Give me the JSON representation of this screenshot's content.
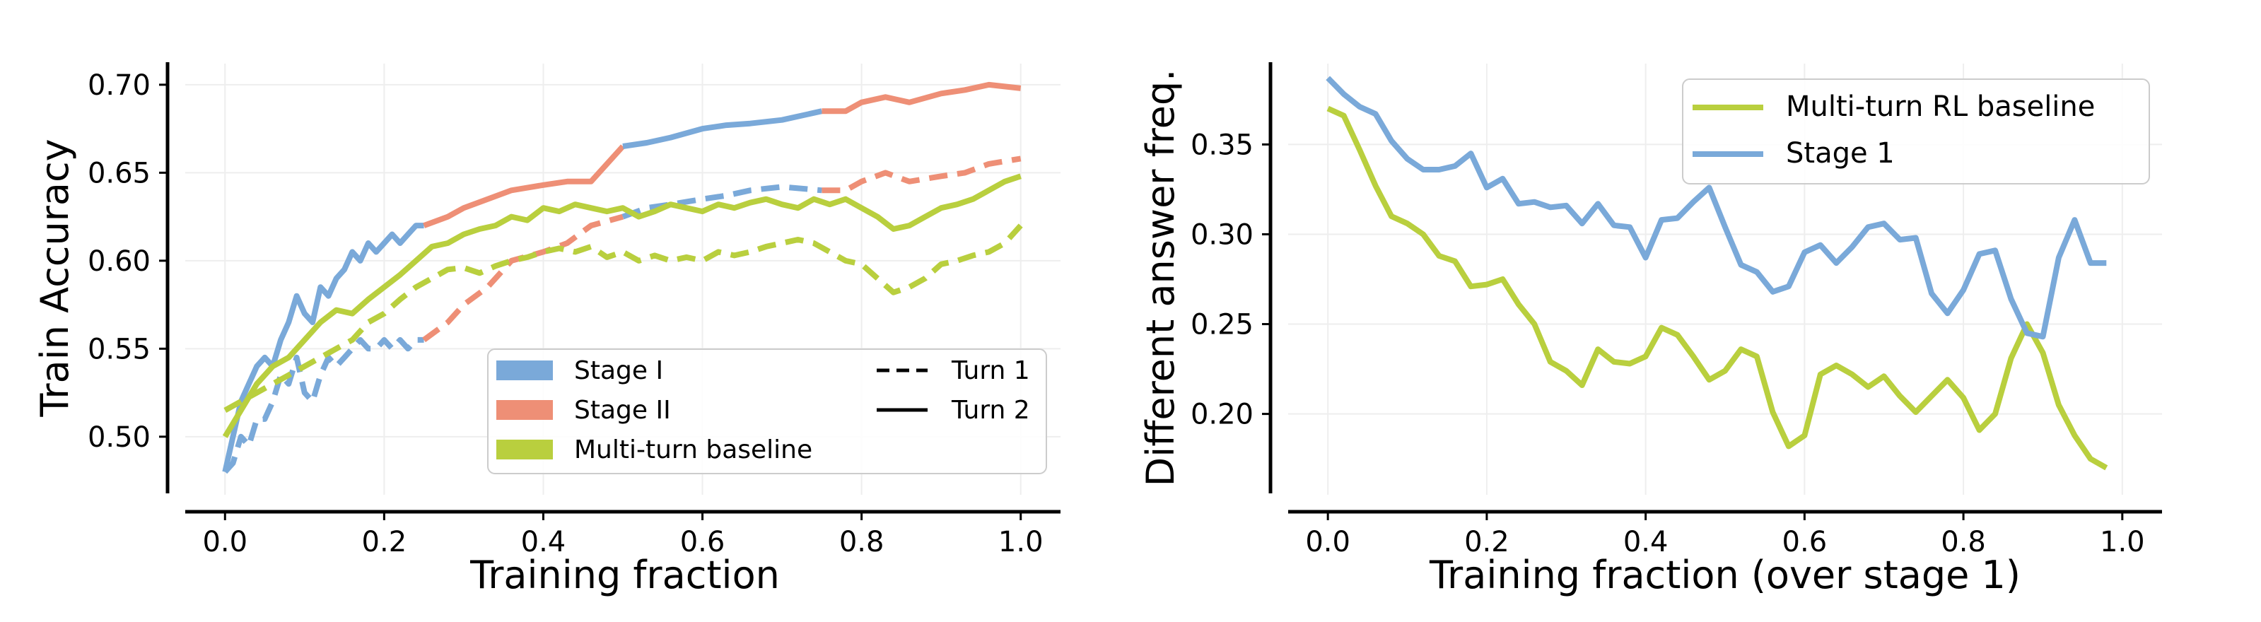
{
  "figure": {
    "colors": {
      "stage1": "#7aa9d9",
      "stage2": "#ee8f76",
      "baseline": "#b9cf3e",
      "axis": "#000000",
      "grid": "#eeeeee"
    }
  },
  "chart_data": [
    {
      "type": "line",
      "xlabel": "Training fraction",
      "ylabel": "Train Accuracy",
      "xlim": [
        -0.05,
        1.05
      ],
      "ylim": [
        0.467,
        0.712
      ],
      "xticks": [
        0.0,
        0.2,
        0.4,
        0.6,
        0.8,
        1.0
      ],
      "xtick_labels": [
        "0.0",
        "0.2",
        "0.4",
        "0.6",
        "0.8",
        "1.0"
      ],
      "yticks": [
        0.5,
        0.55,
        0.6,
        0.65,
        0.7
      ],
      "ytick_labels": [
        "0.50",
        "0.55",
        "0.60",
        "0.65",
        "0.70"
      ],
      "grid": true,
      "legend": {
        "placement": "lower-right",
        "stage_entries": [
          {
            "name": "Stage I",
            "color": "stage1"
          },
          {
            "name": "Stage II",
            "color": "stage2"
          },
          {
            "name": "Multi-turn baseline",
            "color": "baseline"
          }
        ],
        "style_entries": [
          {
            "name": "Turn 1",
            "style": "dashed"
          },
          {
            "name": "Turn 2",
            "style": "solid"
          }
        ]
      },
      "series": [
        {
          "key": "stage1_turn2",
          "color": "stage1",
          "style": "solid",
          "x": [
            0.0,
            0.01,
            0.02,
            0.03,
            0.04,
            0.05,
            0.06,
            0.07,
            0.08,
            0.09,
            0.1,
            0.11,
            0.12,
            0.13,
            0.14,
            0.15,
            0.16,
            0.17,
            0.18,
            0.19,
            0.2,
            0.21,
            0.22,
            0.23,
            0.24,
            0.25
          ],
          "y": [
            0.48,
            0.5,
            0.52,
            0.53,
            0.54,
            0.545,
            0.54,
            0.555,
            0.565,
            0.58,
            0.57,
            0.565,
            0.585,
            0.58,
            0.59,
            0.595,
            0.605,
            0.6,
            0.61,
            0.605,
            0.61,
            0.615,
            0.61,
            0.615,
            0.62,
            0.62
          ]
        },
        {
          "key": "stage1_turn1",
          "color": "stage1",
          "style": "dashed",
          "x": [
            0.0,
            0.01,
            0.02,
            0.03,
            0.04,
            0.05,
            0.06,
            0.07,
            0.08,
            0.09,
            0.1,
            0.11,
            0.12,
            0.13,
            0.14,
            0.15,
            0.16,
            0.17,
            0.18,
            0.19,
            0.2,
            0.21,
            0.22,
            0.23,
            0.24,
            0.25
          ],
          "y": [
            0.48,
            0.485,
            0.5,
            0.495,
            0.51,
            0.51,
            0.52,
            0.535,
            0.53,
            0.545,
            0.525,
            0.52,
            0.535,
            0.545,
            0.54,
            0.545,
            0.55,
            0.555,
            0.55,
            0.55,
            0.555,
            0.55,
            0.555,
            0.55,
            0.555,
            0.555
          ]
        },
        {
          "key": "stage2_turn2",
          "color": "stage2",
          "style": "solid",
          "x": [
            0.25,
            0.28,
            0.3,
            0.33,
            0.36,
            0.4,
            0.43,
            0.46,
            0.5
          ],
          "y": [
            0.62,
            0.625,
            0.63,
            0.635,
            0.64,
            0.643,
            0.645,
            0.645,
            0.665
          ]
        },
        {
          "key": "stage1b_turn2",
          "color": "stage1",
          "style": "solid",
          "x": [
            0.5,
            0.53,
            0.56,
            0.6,
            0.63,
            0.66,
            0.7,
            0.75
          ],
          "y": [
            0.665,
            0.667,
            0.67,
            0.675,
            0.677,
            0.678,
            0.68,
            0.685
          ]
        },
        {
          "key": "stage2b_turn2",
          "color": "stage2",
          "style": "solid",
          "x": [
            0.75,
            0.78,
            0.8,
            0.83,
            0.86,
            0.9,
            0.93,
            0.96,
            1.0
          ],
          "y": [
            0.685,
            0.685,
            0.69,
            0.693,
            0.69,
            0.695,
            0.697,
            0.7,
            0.698
          ]
        },
        {
          "key": "stage2_turn1",
          "color": "stage2",
          "style": "dashed",
          "x": [
            0.25,
            0.28,
            0.3,
            0.33,
            0.36,
            0.4,
            0.43,
            0.46,
            0.5
          ],
          "y": [
            0.555,
            0.565,
            0.575,
            0.585,
            0.6,
            0.605,
            0.61,
            0.62,
            0.625
          ]
        },
        {
          "key": "stage1b_turn1",
          "color": "stage1",
          "style": "dashed",
          "x": [
            0.5,
            0.53,
            0.56,
            0.6,
            0.63,
            0.66,
            0.7,
            0.75
          ],
          "y": [
            0.625,
            0.63,
            0.632,
            0.635,
            0.637,
            0.64,
            0.642,
            0.64
          ]
        },
        {
          "key": "stage2b_turn1",
          "color": "stage2",
          "style": "dashed",
          "x": [
            0.75,
            0.78,
            0.8,
            0.83,
            0.86,
            0.9,
            0.93,
            0.96,
            1.0
          ],
          "y": [
            0.64,
            0.64,
            0.645,
            0.65,
            0.645,
            0.648,
            0.65,
            0.655,
            0.658
          ]
        },
        {
          "key": "baseline_turn2",
          "color": "baseline",
          "style": "solid",
          "x": [
            0.0,
            0.02,
            0.04,
            0.06,
            0.08,
            0.1,
            0.12,
            0.14,
            0.16,
            0.18,
            0.2,
            0.22,
            0.24,
            0.26,
            0.28,
            0.3,
            0.32,
            0.34,
            0.36,
            0.38,
            0.4,
            0.42,
            0.44,
            0.46,
            0.48,
            0.5,
            0.52,
            0.54,
            0.56,
            0.58,
            0.6,
            0.62,
            0.64,
            0.66,
            0.68,
            0.7,
            0.72,
            0.74,
            0.76,
            0.78,
            0.8,
            0.82,
            0.84,
            0.86,
            0.88,
            0.9,
            0.92,
            0.94,
            0.96,
            0.98,
            1.0
          ],
          "y": [
            0.5,
            0.515,
            0.53,
            0.54,
            0.545,
            0.555,
            0.565,
            0.572,
            0.57,
            0.578,
            0.585,
            0.592,
            0.6,
            0.608,
            0.61,
            0.615,
            0.618,
            0.62,
            0.625,
            0.623,
            0.63,
            0.628,
            0.632,
            0.63,
            0.628,
            0.63,
            0.625,
            0.628,
            0.632,
            0.63,
            0.628,
            0.632,
            0.63,
            0.633,
            0.635,
            0.632,
            0.63,
            0.635,
            0.632,
            0.635,
            0.63,
            0.625,
            0.618,
            0.62,
            0.625,
            0.63,
            0.632,
            0.635,
            0.64,
            0.645,
            0.648
          ]
        },
        {
          "key": "baseline_turn1",
          "color": "baseline",
          "style": "dashed",
          "x": [
            0.0,
            0.02,
            0.04,
            0.06,
            0.08,
            0.1,
            0.12,
            0.14,
            0.16,
            0.18,
            0.2,
            0.22,
            0.24,
            0.26,
            0.28,
            0.3,
            0.32,
            0.34,
            0.36,
            0.38,
            0.4,
            0.42,
            0.44,
            0.46,
            0.48,
            0.5,
            0.52,
            0.54,
            0.56,
            0.58,
            0.6,
            0.62,
            0.64,
            0.66,
            0.68,
            0.7,
            0.72,
            0.74,
            0.76,
            0.78,
            0.8,
            0.82,
            0.84,
            0.86,
            0.88,
            0.9,
            0.92,
            0.94,
            0.96,
            0.98,
            1.0
          ],
          "y": [
            0.515,
            0.52,
            0.525,
            0.53,
            0.535,
            0.54,
            0.545,
            0.55,
            0.555,
            0.565,
            0.57,
            0.578,
            0.585,
            0.59,
            0.595,
            0.596,
            0.593,
            0.597,
            0.6,
            0.602,
            0.605,
            0.607,
            0.605,
            0.608,
            0.602,
            0.605,
            0.6,
            0.603,
            0.6,
            0.602,
            0.6,
            0.605,
            0.603,
            0.605,
            0.608,
            0.61,
            0.612,
            0.61,
            0.605,
            0.6,
            0.598,
            0.59,
            0.582,
            0.585,
            0.59,
            0.598,
            0.6,
            0.603,
            0.605,
            0.61,
            0.62
          ]
        }
      ]
    },
    {
      "type": "line",
      "xlabel": "Training fraction (over stage 1)",
      "ylabel": "Different answer freq.",
      "xlim": [
        -0.05,
        1.05
      ],
      "ylim": [
        0.155,
        0.395
      ],
      "xticks": [
        0.0,
        0.2,
        0.4,
        0.6,
        0.8,
        1.0
      ],
      "xtick_labels": [
        "0.0",
        "0.2",
        "0.4",
        "0.6",
        "0.8",
        "1.0"
      ],
      "yticks": [
        0.2,
        0.25,
        0.3,
        0.35
      ],
      "ytick_labels": [
        "0.20",
        "0.25",
        "0.30",
        "0.35"
      ],
      "grid": true,
      "legend": {
        "placement": "top-right",
        "entries": [
          {
            "name": "Multi-turn RL baseline",
            "color": "baseline"
          },
          {
            "name": "Stage 1",
            "color": "stage1"
          }
        ]
      },
      "series": [
        {
          "key": "baseline",
          "name": "Multi-turn RL baseline",
          "color": "baseline",
          "style": "solid",
          "x": [
            0.0,
            0.02,
            0.04,
            0.06,
            0.08,
            0.1,
            0.12,
            0.14,
            0.16,
            0.18,
            0.2,
            0.22,
            0.24,
            0.26,
            0.28,
            0.3,
            0.32,
            0.34,
            0.36,
            0.38,
            0.4,
            0.42,
            0.44,
            0.46,
            0.48,
            0.5,
            0.52,
            0.54,
            0.56,
            0.58,
            0.6,
            0.62,
            0.64,
            0.66,
            0.68,
            0.7,
            0.72,
            0.74,
            0.76,
            0.78,
            0.8,
            0.82,
            0.84,
            0.86,
            0.88,
            0.9,
            0.92,
            0.94,
            0.96,
            0.98
          ],
          "y": [
            0.37,
            0.366,
            0.347,
            0.327,
            0.31,
            0.306,
            0.3,
            0.288,
            0.285,
            0.271,
            0.272,
            0.275,
            0.261,
            0.25,
            0.229,
            0.224,
            0.216,
            0.236,
            0.229,
            0.228,
            0.232,
            0.248,
            0.244,
            0.232,
            0.219,
            0.224,
            0.236,
            0.232,
            0.201,
            0.182,
            0.188,
            0.222,
            0.227,
            0.222,
            0.215,
            0.221,
            0.21,
            0.201,
            0.21,
            0.219,
            0.209,
            0.191,
            0.2,
            0.231,
            0.25,
            0.234,
            0.205,
            0.188,
            0.175,
            0.17
          ]
        },
        {
          "key": "stage1",
          "name": "Stage 1",
          "color": "stage1",
          "style": "solid",
          "x": [
            0.0,
            0.02,
            0.04,
            0.06,
            0.08,
            0.1,
            0.12,
            0.14,
            0.16,
            0.18,
            0.2,
            0.22,
            0.24,
            0.26,
            0.28,
            0.3,
            0.32,
            0.34,
            0.36,
            0.38,
            0.4,
            0.42,
            0.44,
            0.46,
            0.48,
            0.5,
            0.52,
            0.54,
            0.56,
            0.58,
            0.6,
            0.62,
            0.64,
            0.66,
            0.68,
            0.7,
            0.72,
            0.74,
            0.76,
            0.78,
            0.8,
            0.82,
            0.84,
            0.86,
            0.88,
            0.9,
            0.92,
            0.94,
            0.96,
            0.98
          ],
          "y": [
            0.387,
            0.378,
            0.371,
            0.367,
            0.352,
            0.342,
            0.336,
            0.336,
            0.338,
            0.345,
            0.326,
            0.331,
            0.317,
            0.318,
            0.315,
            0.316,
            0.306,
            0.317,
            0.305,
            0.304,
            0.287,
            0.308,
            0.309,
            0.318,
            0.326,
            0.304,
            0.283,
            0.279,
            0.268,
            0.271,
            0.29,
            0.294,
            0.284,
            0.293,
            0.304,
            0.306,
            0.297,
            0.298,
            0.267,
            0.256,
            0.269,
            0.289,
            0.291,
            0.264,
            0.245,
            0.243,
            0.287,
            0.308,
            0.284,
            0.284
          ]
        }
      ]
    }
  ]
}
